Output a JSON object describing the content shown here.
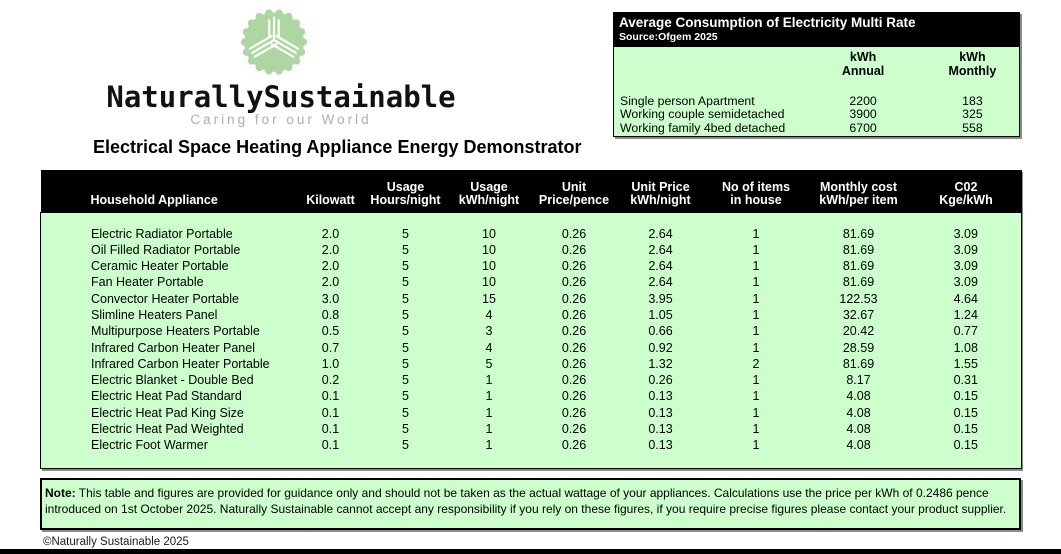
{
  "brand": {
    "name": "NaturallySustainable",
    "tagline": "Caring for our World"
  },
  "title": "Electrical Space Heating Appliance Energy Demonstrator",
  "consumption_box": {
    "title": "Average Consumption of Electricity Multi Rate",
    "source": "Source:Ofgem 2025",
    "columns": [
      {
        "line1": "kWh",
        "line2": "Annual"
      },
      {
        "line1": "kWh",
        "line2": "Monthly"
      }
    ],
    "rows": [
      [
        "Single person Apartment",
        "2200",
        "183"
      ],
      [
        "Working couple semidetached",
        "3900",
        "325"
      ],
      [
        "Working family 4bed detached",
        "6700",
        "558"
      ]
    ]
  },
  "table": {
    "headers": [
      {
        "line1": "",
        "line2": "Household Appliance"
      },
      {
        "line1": "",
        "line2": "Kilowatt"
      },
      {
        "line1": "Usage",
        "line2": "Hours/night"
      },
      {
        "line1": "Usage",
        "line2": "kWh/night"
      },
      {
        "line1": "Unit",
        "line2": "Price/pence"
      },
      {
        "line1": "Unit Price",
        "line2": "kWh/night"
      },
      {
        "line1": "No of items",
        "line2": "in house"
      },
      {
        "line1": "Monthly cost",
        "line2": "kWh/per item"
      },
      {
        "line1": "C02",
        "line2": "Kge/kWh"
      }
    ],
    "rows": [
      [
        "Electric Radiator Portable",
        "2.0",
        "5",
        "10",
        "0.26",
        "2.64",
        "1",
        "81.69",
        "3.09"
      ],
      [
        "Oil Filled Radiator Portable",
        "2.0",
        "5",
        "10",
        "0.26",
        "2.64",
        "1",
        "81.69",
        "3.09"
      ],
      [
        "Ceramic Heater Portable",
        "2.0",
        "5",
        "10",
        "0.26",
        "2.64",
        "1",
        "81.69",
        "3.09"
      ],
      [
        "Fan Heater Portable",
        "2.0",
        "5",
        "10",
        "0.26",
        "2.64",
        "1",
        "81.69",
        "3.09"
      ],
      [
        "Convector Heater Portable",
        "3.0",
        "5",
        "15",
        "0.26",
        "3.95",
        "1",
        "122.53",
        "4.64"
      ],
      [
        "Slimline Heaters Panel",
        "0.8",
        "5",
        "4",
        "0.26",
        "1.05",
        "1",
        "32.67",
        "1.24"
      ],
      [
        "Multipurpose Heaters Portable",
        "0.5",
        "5",
        "3",
        "0.26",
        "0.66",
        "1",
        "20.42",
        "0.77"
      ],
      [
        "Infrared Carbon Heater Panel",
        "0.7",
        "5",
        "4",
        "0.26",
        "0.92",
        "1",
        "28.59",
        "1.08"
      ],
      [
        "Infrared Carbon Heater Portable",
        "1.0",
        "5",
        "5",
        "0.26",
        "1.32",
        "2",
        "81.69",
        "1.55"
      ],
      [
        "Electric Blanket - Double Bed",
        "0.2",
        "5",
        "1",
        "0.26",
        "0.26",
        "1",
        "8.17",
        "0.31"
      ],
      [
        "Electric Heat Pad Standard",
        "0.1",
        "5",
        "1",
        "0.26",
        "0.13",
        "1",
        "4.08",
        "0.15"
      ],
      [
        "Electric Heat Pad King Size",
        "0.1",
        "5",
        "1",
        "0.26",
        "0.13",
        "1",
        "4.08",
        "0.15"
      ],
      [
        "Electric Heat Pad Weighted",
        "0.1",
        "5",
        "1",
        "0.26",
        "0.13",
        "1",
        "4.08",
        "0.15"
      ],
      [
        "Electric Foot Warmer",
        "0.1",
        "5",
        "1",
        "0.26",
        "0.13",
        "1",
        "4.08",
        "0.15"
      ]
    ]
  },
  "note": {
    "label": "Note:",
    "line1": "This table and figures are provided for guidance only and should not be taken as the actual wattage of your appliances. Calculations use the price per kWh of 0.2486 pence",
    "line2": "introduced on 1st October 2025. Naturally Sustainable cannot accept any responsibility if you rely on these figures, if you require precise figures please contact your product supplier."
  },
  "footer": {
    "copyright": "©Naturally Sustainable 2025"
  },
  "colors": {
    "table_green": "#ccffcc",
    "logo_green": "#aed6a2",
    "header_black": "#000000"
  }
}
